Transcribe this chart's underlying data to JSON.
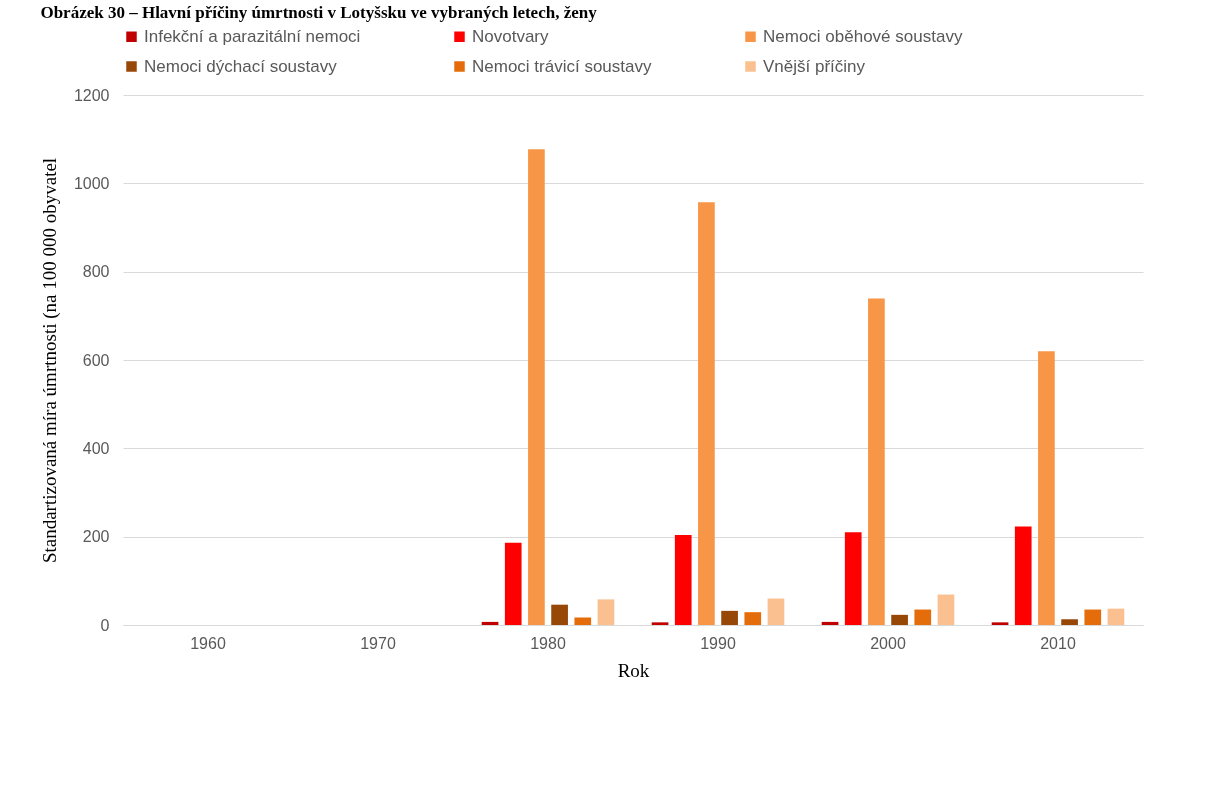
{
  "chart_data": {
    "type": "bar",
    "title": "Obrázek 30 – Hlavní příčiny úmrtnosti v Lotyšsku ve vybraných letech, ženy",
    "xlabel": "Rok",
    "ylabel": "Standartizovaná míra úmrtnosti (na 100 000 obyvatel",
    "categories": [
      "1960",
      "1970",
      "1980",
      "1990",
      "2000",
      "2010"
    ],
    "series": [
      {
        "name": "Infekční a parazitální nemoci",
        "color": "#c00000",
        "values": [
          null,
          null,
          7,
          6,
          7,
          6
        ]
      },
      {
        "name": "Novotvary",
        "color": "#ff0000",
        "values": [
          null,
          null,
          186,
          204,
          210,
          223
        ]
      },
      {
        "name": "Nemoci oběhové soustavy",
        "color": "#f79646",
        "values": [
          null,
          null,
          1077,
          957,
          739,
          620
        ]
      },
      {
        "name": "Nemoci dýchací soustavy",
        "color": "#974706",
        "values": [
          null,
          null,
          46,
          32,
          23,
          13
        ]
      },
      {
        "name": "Nemoci trávicí soustavy",
        "color": "#e46c0a",
        "values": [
          null,
          null,
          17,
          29,
          35,
          35
        ]
      },
      {
        "name": "Vnější příčiny",
        "color": "#fac090",
        "values": [
          null,
          null,
          58,
          60,
          69,
          37
        ]
      }
    ],
    "ylim": [
      0,
      1200
    ],
    "yticks": [
      0,
      200,
      400,
      600,
      800,
      1000,
      1200
    ],
    "grid": "y",
    "legend": "top"
  }
}
